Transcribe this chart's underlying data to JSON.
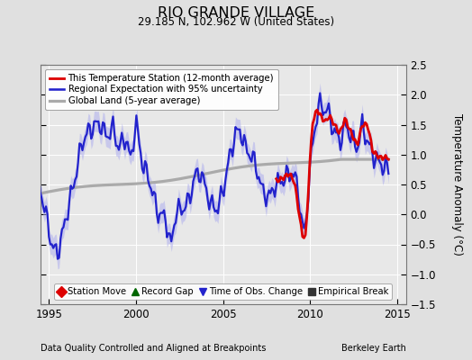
{
  "title": "RIO GRANDE VILLAGE",
  "subtitle": "29.185 N, 102.962 W (United States)",
  "xlabel_left": "Data Quality Controlled and Aligned at Breakpoints",
  "xlabel_right": "Berkeley Earth",
  "ylabel": "Temperature Anomaly (°C)",
  "xlim": [
    1994.5,
    2015.5
  ],
  "ylim": [
    -1.5,
    2.5
  ],
  "yticks": [
    -1.5,
    -1.0,
    -0.5,
    0.0,
    0.5,
    1.0,
    1.5,
    2.0,
    2.5
  ],
  "xticks": [
    1995,
    2000,
    2005,
    2010,
    2015
  ],
  "background_color": "#e0e0e0",
  "plot_bg_color": "#e8e8e8",
  "grid_color": "#ffffff",
  "blue_color": "#2222cc",
  "blue_fill_color": "#aaaaee",
  "red_color": "#dd0000",
  "gray_color": "#aaaaaa",
  "legend1_labels": [
    "This Temperature Station (12-month average)",
    "Regional Expectation with 95% uncertainty",
    "Global Land (5-year average)"
  ],
  "legend2_labels": [
    "Station Move",
    "Record Gap",
    "Time of Obs. Change",
    "Empirical Break"
  ],
  "legend2_markers": [
    "D",
    "^",
    "v",
    "s"
  ],
  "legend2_colors": [
    "#dd0000",
    "#006600",
    "#2222cc",
    "#333333"
  ]
}
